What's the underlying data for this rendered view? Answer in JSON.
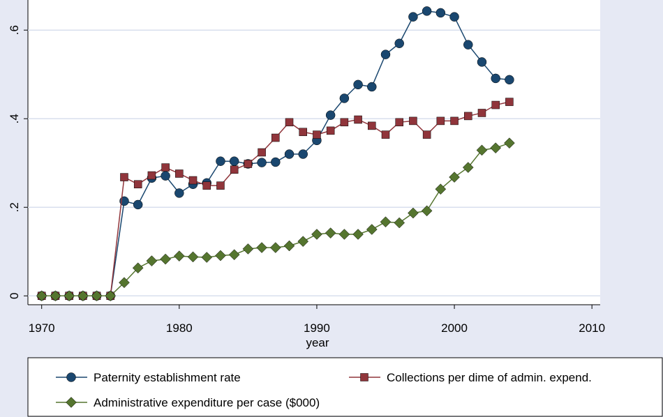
{
  "chart_data": {
    "type": "line",
    "x_label": "year",
    "x": [
      1970,
      1971,
      1972,
      1973,
      1974,
      1975,
      1976,
      1977,
      1978,
      1979,
      1980,
      1981,
      1982,
      1983,
      1984,
      1985,
      1986,
      1987,
      1988,
      1989,
      1990,
      1991,
      1992,
      1993,
      1994,
      1995,
      1996,
      1997,
      1998,
      1999,
      2000,
      2001,
      2002,
      2003,
      2004
    ],
    "series": [
      {
        "name": "Paternity establishment rate",
        "color": "#1a476f",
        "marker": "circle",
        "values": [
          0,
          0,
          0,
          0,
          0,
          0,
          0.214,
          0.206,
          0.266,
          0.271,
          0.232,
          0.252,
          0.255,
          0.304,
          0.304,
          0.298,
          0.301,
          0.302,
          0.32,
          0.32,
          0.351,
          0.408,
          0.446,
          0.477,
          0.472,
          0.545,
          0.57,
          0.63,
          0.643,
          0.639,
          0.63,
          0.567,
          0.528,
          0.491,
          0.488
        ]
      },
      {
        "name": "Collections per dime of admin. expend.",
        "color": "#90353b",
        "marker": "square",
        "values": [
          0,
          0,
          0,
          0,
          0,
          0,
          0.268,
          0.252,
          0.272,
          0.29,
          0.276,
          0.261,
          0.249,
          0.249,
          0.285,
          0.298,
          0.324,
          0.357,
          0.392,
          0.37,
          0.364,
          0.373,
          0.392,
          0.398,
          0.384,
          0.364,
          0.392,
          0.395,
          0.364,
          0.395,
          0.395,
          0.406,
          0.413,
          0.431,
          0.438
        ]
      },
      {
        "name": "Administrative expenditure per case ($000)",
        "color": "#55752f",
        "marker": "diamond",
        "values": [
          0,
          0,
          0,
          0,
          0,
          0,
          0.03,
          0.063,
          0.079,
          0.083,
          0.09,
          0.088,
          0.087,
          0.091,
          0.093,
          0.106,
          0.109,
          0.109,
          0.113,
          0.123,
          0.139,
          0.142,
          0.139,
          0.139,
          0.15,
          0.167,
          0.165,
          0.187,
          0.192,
          0.241,
          0.268,
          0.29,
          0.329,
          0.334,
          0.345
        ]
      }
    ],
    "xlim": [
      1969,
      2010.6
    ],
    "xticks": [
      1970,
      1980,
      1990,
      2000,
      2010
    ],
    "ylim": [
      -0.02,
      0.668
    ],
    "yticks": [
      0,
      {
        "value": 0.2,
        "label": ".2"
      },
      {
        "value": 0.4,
        "label": ".4"
      },
      {
        "value": 0.6,
        "label": ".6"
      }
    ],
    "grid": true
  }
}
